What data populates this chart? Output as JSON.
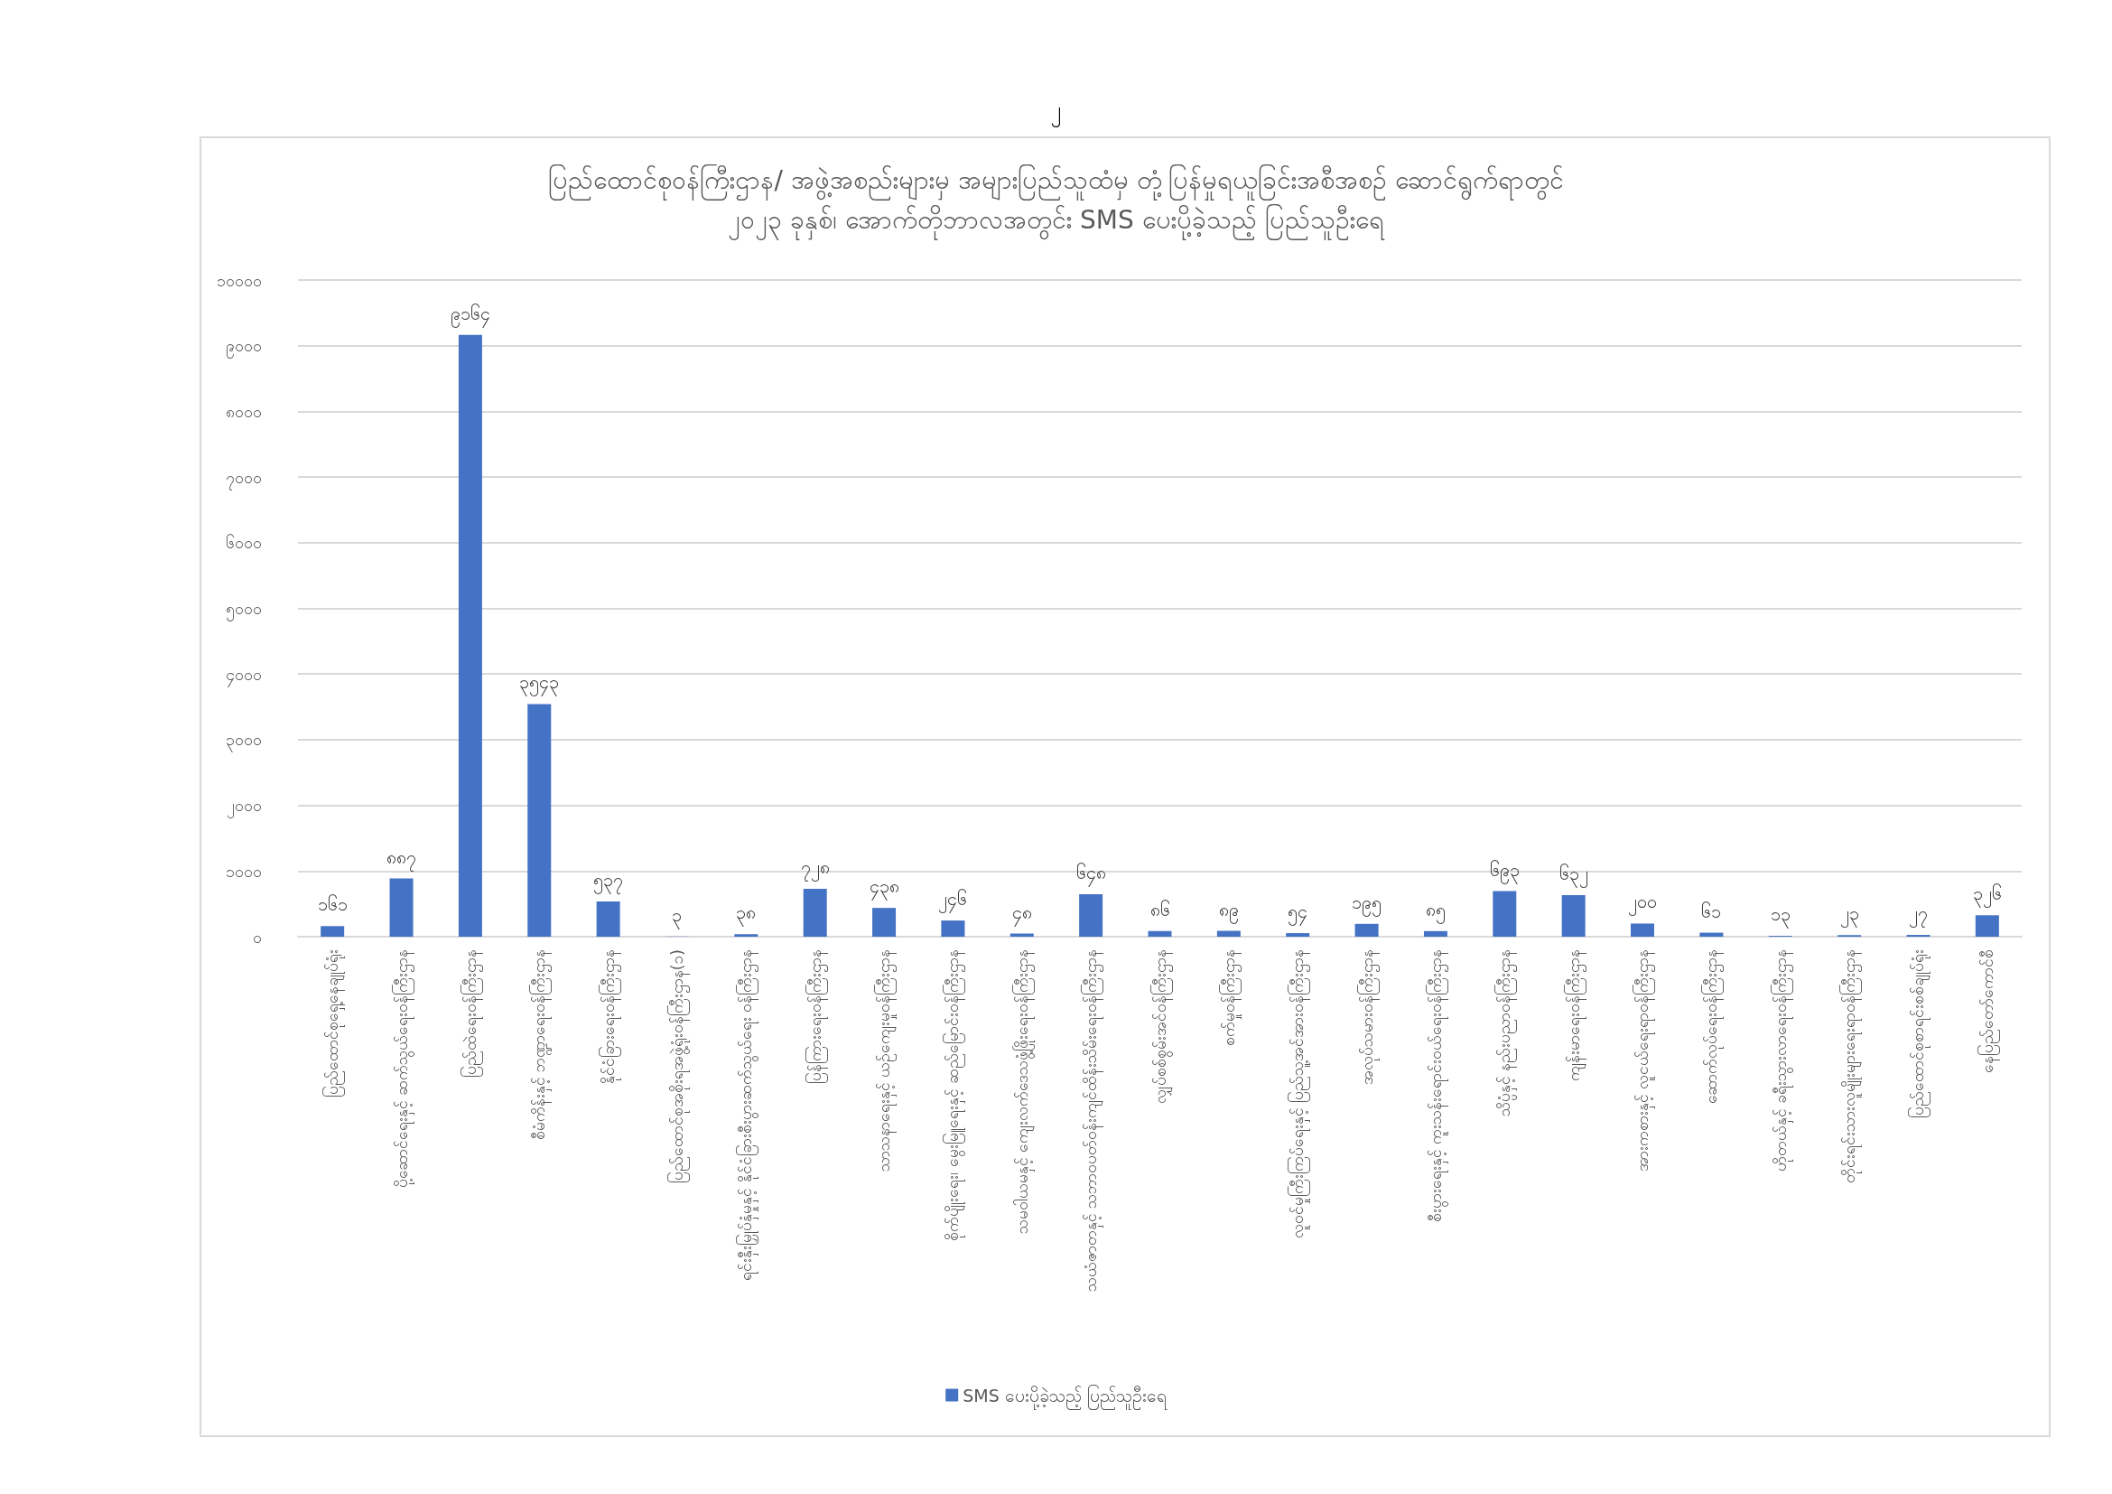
{
  "chart_data": {
    "type": "bar",
    "title": "ပြည်ထောင်စုဝန်ကြီးဌာန/ အဖွဲ့အစည်းများမှ အများပြည်သူထံမှ တုံ့ပြန်မှုရယူခြင်းအစီအစဉ် ဆောင်ရွက်ရာတွင်\n၂၀၂၃ ခုနှစ်၊ အောက်တိုဘာလအတွင်း SMS ပေးပို့ခဲ့သည့် ပြည်သူဦးရေ",
    "annotations": [
      "၂"
    ],
    "categories": [
      "ပြည်ထောင်စုရှေ့နေချုပ်ရုံး",
      "ပို့ဆောင်ရေးနှင့် ဆက်သွယ်ရေးဝန်ကြီးဌာန",
      "ပြည်ထဲရေးဝန်ကြီးဌာန",
      "စီမံကိန်းနှင့် ဘဏ္ဍာရေးဝန်ကြီးဌာန",
      "နိုင်ငံခြားရေးဝန်ကြီးဌာန",
      "ပြည်ထောင်စုအစိုးရအဖွဲ့ရုံးဝန်ကြီးဌာန(၁)",
      "ရင်းနှီးမြှုပ်နှံမှုနှင့် နိုင်ငံခြားစီးပွားဆက်သွယ်ရေး ဝန်ကြီးဌာန",
      "ပြန်ကြားရေးဝန်ကြီးဌာန",
      "သာသနာရေးနှင့် ယဉ်ကျေးမှုဝန်ကြီးဌာန",
      "စိုက်ပျိုးရေး၊ မွေးမြူရေးနှင့် ဆည်မြောင်းဝန်ကြီးဌာန",
      "သမဝါယမနှင့် ကျေးလက်ဒေသဖွံ့ဖြိုးရေးဝန်ကြီးဌာန",
      "သယံဇာတနှင့် သဘာဝပတ်ဝန်းကျင်ထိန်းသိမ်းရေးဝန်ကြီးဌာန",
      "လျှပ်စစ်စွမ်းအင်ဝန်ကြီးဌာန",
      "စက်မှုဝန်ကြီးဌာန",
      "လူဝင်မှုကြီးကြပ်ရေးနှင့် ပြည်သူ့အင်အားဝန်ကြီးဌာန",
      "အလုပ်သမားဝန်ကြီးဌာန",
      "စီးပွားရေးနှင့် ကူးသန်းရောင်းဝယ်ရေးဝန်ကြီးဌာန",
      "သိပ္ပံနှင့် နည်းပညာဝန်ကြီးဌာန",
      "ကျန်းမာရေးဝန်ကြီးဌာန",
      "အားကစားနှင့် လူငယ်ရေးရာဝန်ကြီးဌာန",
      "ဆောက်လုပ်ရေးဝန်ကြီးဌာန",
      "ဟိုတယ်နှင့် ခရီးသွားလာရေးဝန်ကြီးဌာန",
      "တိုင်းရင်းသားလူမျိုးများရေးရာဝန်ကြီးဌာန",
      "ပြည်ထောင်စုစာရင်းစစ်ချုပ်ရုံး",
      "နေပြည်တော်ကောင်စီ"
    ],
    "series": [
      {
        "name": "SMS ပေးပို့ခဲ့သည့် ပြည်သူဦးရေ",
        "color": "#4472c4",
        "values": [
          161,
          887,
          9164,
          3543,
          537,
          3,
          38,
          728,
          438,
          246,
          48,
          648,
          86,
          89,
          54,
          195,
          85,
          693,
          632,
          200,
          61,
          13,
          23,
          27,
          326
        ],
        "value_labels": [
          "၁၆၁",
          "၈၈၇",
          "၉၁၆၄",
          "၃၅၄၃",
          "၅၃၇",
          "၃",
          "၃၈",
          "၇၂၈",
          "၄၃၈",
          "၂၄၆",
          "၄၈",
          "၆၄၈",
          "၈၆",
          "၈၉",
          "၅၄",
          "၁၉၅",
          "၈၅",
          "၆၉၃",
          "၆၃၂",
          "၂၀၀",
          "၆၁",
          "၁၃",
          "၂၃",
          "၂၇",
          "၃၂၆"
        ]
      }
    ],
    "ylim": [
      0,
      10000
    ],
    "yticks": [
      {
        "value": 0,
        "label": "၀"
      },
      {
        "value": 1000,
        "label": "၁၀၀၀"
      },
      {
        "value": 2000,
        "label": "၂၀၀၀"
      },
      {
        "value": 3000,
        "label": "၃၀၀၀"
      },
      {
        "value": 4000,
        "label": "၄၀၀၀"
      },
      {
        "value": 5000,
        "label": "၅၀၀၀"
      },
      {
        "value": 6000,
        "label": "၆၀၀၀"
      },
      {
        "value": 7000,
        "label": "၇၀၀၀"
      },
      {
        "value": 8000,
        "label": "၈၀၀၀"
      },
      {
        "value": 9000,
        "label": "၉၀၀၀"
      },
      {
        "value": 10000,
        "label": "၁၀၀၀၀"
      }
    ],
    "grid": "y",
    "legend": "bottom"
  }
}
